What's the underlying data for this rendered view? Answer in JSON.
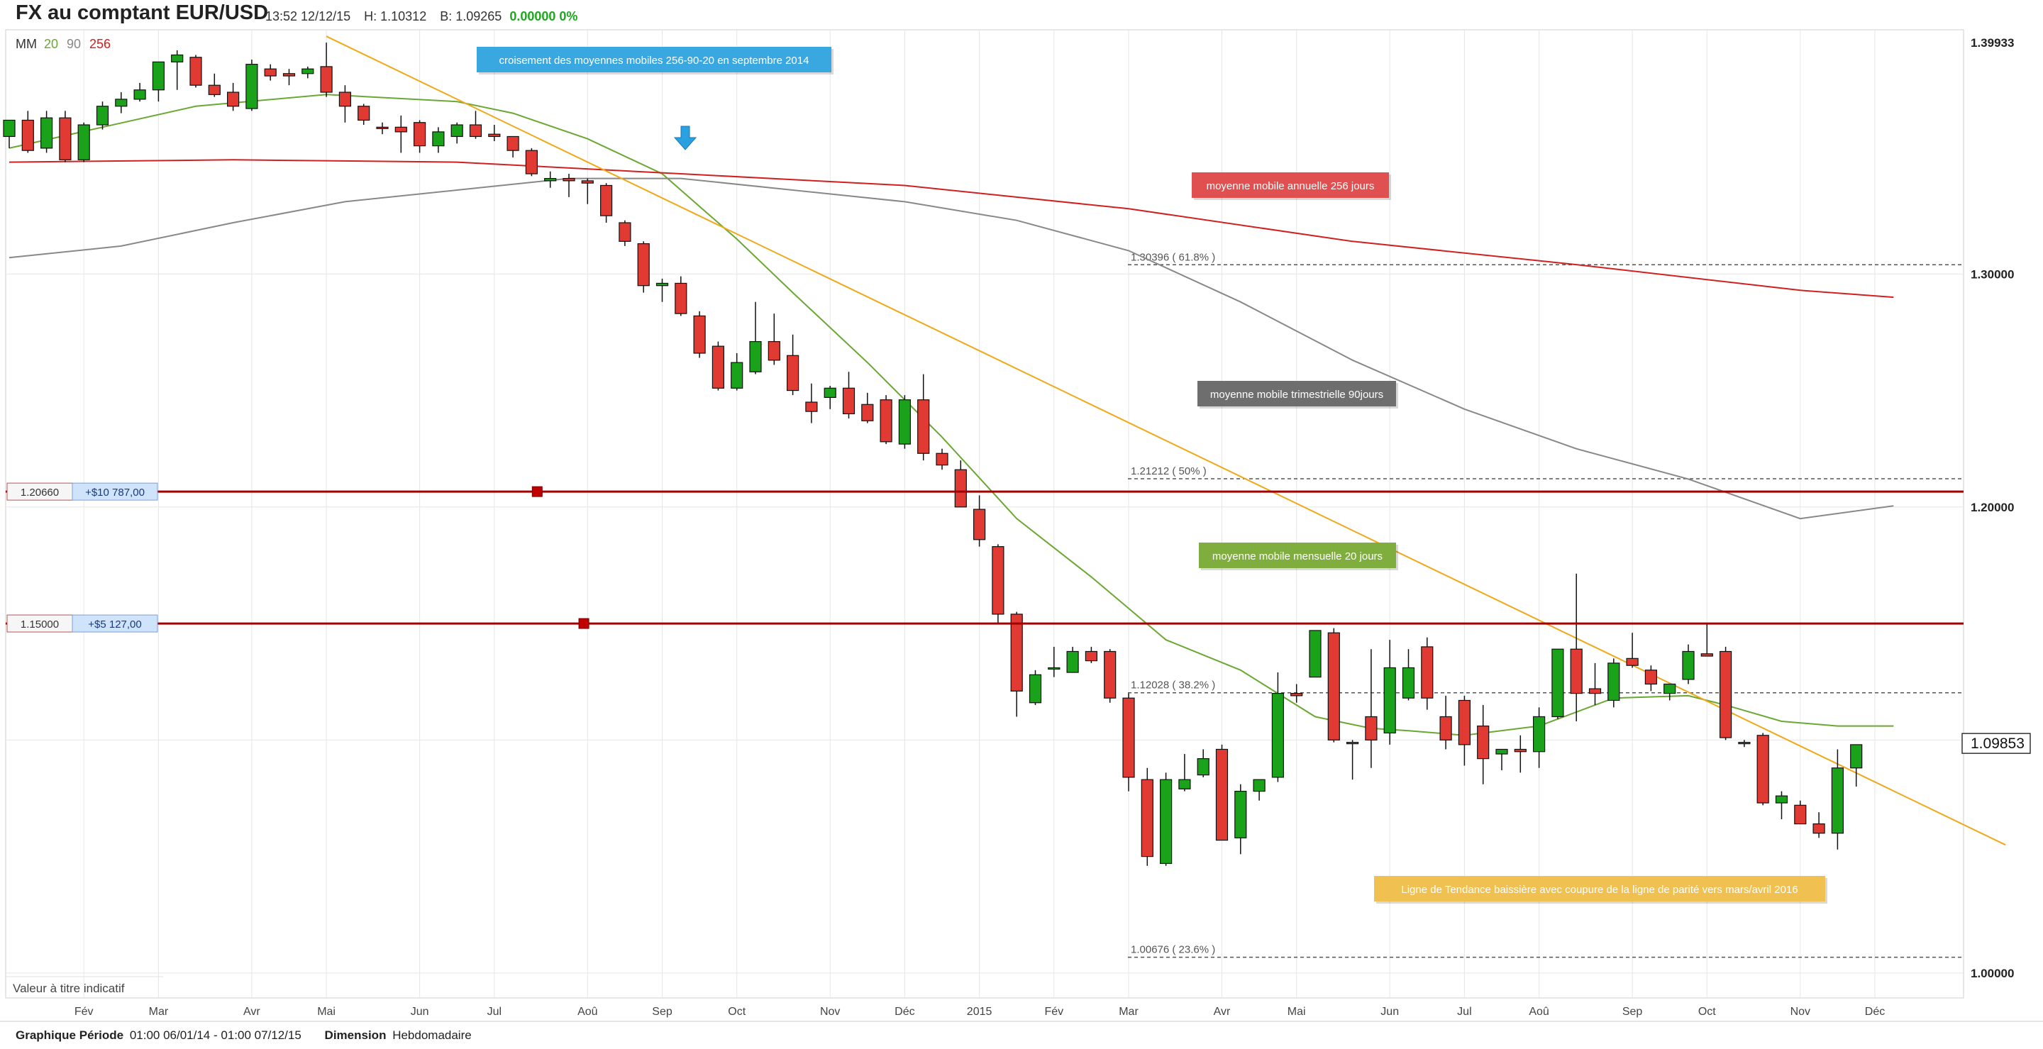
{
  "header": {
    "title": "FX au comptant EUR/USD",
    "datetime": "13:52 12/12/15",
    "high": "H: 1.10312",
    "bid": "B: 1.09265",
    "change": "0.00000 0%"
  },
  "footer": {
    "period_label": "Graphique Période",
    "period_value": "01:00 06/01/14 - 01:00 07/12/15",
    "dimension_label": "Dimension",
    "dimension_value": "Hebdomadaire"
  },
  "chart_data": {
    "type": "candlestick",
    "title": "FX au comptant EUR/USD",
    "interval": "weekly",
    "ylim": [
      0.9893,
      1.4048
    ],
    "yticks": [
      {
        "value": 1.3,
        "label": "1.30000"
      },
      {
        "value": 1.2,
        "label": "1.20000"
      },
      {
        "value": 1.0,
        "label": "1.00000"
      }
    ],
    "top_price_label": "1.39933",
    "last_price": 1.09853,
    "last_price_label": "1.09853",
    "disclaimer": "Valeur à titre indicatif",
    "x_ticks": [
      "Fév",
      "Mar",
      "Avr",
      "Mai",
      "Jun",
      "Jul",
      "Aoû",
      "Sep",
      "Oct",
      "Nov",
      "Déc",
      "2015",
      "Fév",
      "Mar",
      "Avr",
      "Mai",
      "Jun",
      "Jul",
      "Aoû",
      "Sep",
      "Oct",
      "Nov",
      "Déc"
    ],
    "ma_legend": {
      "label": "MM",
      "periods": [
        {
          "period": "20",
          "color": "#6aa832"
        },
        {
          "period": "90",
          "color": "#888888"
        },
        {
          "period": "256",
          "color": "#d02020"
        }
      ]
    },
    "candles": [
      {
        "o": 1.359,
        "h": 1.365,
        "l": 1.354,
        "c": 1.366
      },
      {
        "o": 1.366,
        "h": 1.37,
        "l": 1.352,
        "c": 1.353
      },
      {
        "o": 1.354,
        "h": 1.37,
        "l": 1.352,
        "c": 1.367
      },
      {
        "o": 1.367,
        "h": 1.37,
        "l": 1.348,
        "c": 1.349
      },
      {
        "o": 1.349,
        "h": 1.365,
        "l": 1.348,
        "c": 1.364
      },
      {
        "o": 1.364,
        "h": 1.374,
        "l": 1.362,
        "c": 1.372
      },
      {
        "o": 1.372,
        "h": 1.378,
        "l": 1.369,
        "c": 1.375
      },
      {
        "o": 1.375,
        "h": 1.382,
        "l": 1.374,
        "c": 1.379
      },
      {
        "o": 1.379,
        "h": 1.389,
        "l": 1.374,
        "c": 1.391
      },
      {
        "o": 1.391,
        "h": 1.396,
        "l": 1.379,
        "c": 1.394
      },
      {
        "o": 1.393,
        "h": 1.394,
        "l": 1.38,
        "c": 1.381
      },
      {
        "o": 1.381,
        "h": 1.386,
        "l": 1.376,
        "c": 1.377
      },
      {
        "o": 1.378,
        "h": 1.382,
        "l": 1.37,
        "c": 1.372
      },
      {
        "o": 1.371,
        "h": 1.392,
        "l": 1.37,
        "c": 1.39
      },
      {
        "o": 1.388,
        "h": 1.39,
        "l": 1.383,
        "c": 1.385
      },
      {
        "o": 1.386,
        "h": 1.388,
        "l": 1.381,
        "c": 1.385
      },
      {
        "o": 1.386,
        "h": 1.389,
        "l": 1.384,
        "c": 1.388
      },
      {
        "o": 1.389,
        "h": 1.3993,
        "l": 1.376,
        "c": 1.378
      },
      {
        "o": 1.378,
        "h": 1.381,
        "l": 1.365,
        "c": 1.372
      },
      {
        "o": 1.372,
        "h": 1.373,
        "l": 1.364,
        "c": 1.366
      },
      {
        "o": 1.363,
        "h": 1.365,
        "l": 1.36,
        "c": 1.3625
      },
      {
        "o": 1.363,
        "h": 1.368,
        "l": 1.352,
        "c": 1.361
      },
      {
        "o": 1.365,
        "h": 1.366,
        "l": 1.352,
        "c": 1.355
      },
      {
        "o": 1.355,
        "h": 1.363,
        "l": 1.352,
        "c": 1.361
      },
      {
        "o": 1.359,
        "h": 1.365,
        "l": 1.356,
        "c": 1.364
      },
      {
        "o": 1.364,
        "h": 1.37,
        "l": 1.358,
        "c": 1.359
      },
      {
        "o": 1.36,
        "h": 1.364,
        "l": 1.357,
        "c": 1.359
      },
      {
        "o": 1.359,
        "h": 1.359,
        "l": 1.35,
        "c": 1.353
      },
      {
        "o": 1.353,
        "h": 1.354,
        "l": 1.342,
        "c": 1.343
      },
      {
        "o": 1.34,
        "h": 1.344,
        "l": 1.337,
        "c": 1.341
      },
      {
        "o": 1.341,
        "h": 1.343,
        "l": 1.333,
        "c": 1.34
      },
      {
        "o": 1.34,
        "h": 1.341,
        "l": 1.33,
        "c": 1.339
      },
      {
        "o": 1.338,
        "h": 1.339,
        "l": 1.322,
        "c": 1.325
      },
      {
        "o": 1.322,
        "h": 1.323,
        "l": 1.312,
        "c": 1.314
      },
      {
        "o": 1.313,
        "h": 1.314,
        "l": 1.292,
        "c": 1.295
      },
      {
        "o": 1.295,
        "h": 1.298,
        "l": 1.288,
        "c": 1.296
      },
      {
        "o": 1.296,
        "h": 1.299,
        "l": 1.282,
        "c": 1.283
      },
      {
        "o": 1.282,
        "h": 1.284,
        "l": 1.264,
        "c": 1.266
      },
      {
        "o": 1.269,
        "h": 1.271,
        "l": 1.25,
        "c": 1.251
      },
      {
        "o": 1.251,
        "h": 1.266,
        "l": 1.25,
        "c": 1.262
      },
      {
        "o": 1.258,
        "h": 1.288,
        "l": 1.257,
        "c": 1.271
      },
      {
        "o": 1.271,
        "h": 1.283,
        "l": 1.261,
        "c": 1.263
      },
      {
        "o": 1.265,
        "h": 1.274,
        "l": 1.248,
        "c": 1.25
      },
      {
        "o": 1.245,
        "h": 1.253,
        "l": 1.236,
        "c": 1.241
      },
      {
        "o": 1.247,
        "h": 1.252,
        "l": 1.242,
        "c": 1.251
      },
      {
        "o": 1.251,
        "h": 1.258,
        "l": 1.238,
        "c": 1.24
      },
      {
        "o": 1.244,
        "h": 1.249,
        "l": 1.236,
        "c": 1.237
      },
      {
        "o": 1.246,
        "h": 1.248,
        "l": 1.227,
        "c": 1.228
      },
      {
        "o": 1.227,
        "h": 1.248,
        "l": 1.225,
        "c": 1.246
      },
      {
        "o": 1.246,
        "h": 1.257,
        "l": 1.22,
        "c": 1.223
      },
      {
        "o": 1.223,
        "h": 1.225,
        "l": 1.216,
        "c": 1.218
      },
      {
        "o": 1.216,
        "h": 1.22,
        "l": 1.2,
        "c": 1.2
      },
      {
        "o": 1.199,
        "h": 1.205,
        "l": 1.183,
        "c": 1.186
      },
      {
        "o": 1.183,
        "h": 1.184,
        "l": 1.15,
        "c": 1.154
      },
      {
        "o": 1.154,
        "h": 1.155,
        "l": 1.11,
        "c": 1.121
      },
      {
        "o": 1.116,
        "h": 1.13,
        "l": 1.115,
        "c": 1.128
      },
      {
        "o": 1.131,
        "h": 1.14,
        "l": 1.127,
        "c": 1.131
      },
      {
        "o": 1.129,
        "h": 1.14,
        "l": 1.129,
        "c": 1.138
      },
      {
        "o": 1.138,
        "h": 1.14,
        "l": 1.133,
        "c": 1.134
      },
      {
        "o": 1.138,
        "h": 1.139,
        "l": 1.116,
        "c": 1.118
      },
      {
        "o": 1.118,
        "h": 1.12,
        "l": 1.078,
        "c": 1.084
      },
      {
        "o": 1.083,
        "h": 1.088,
        "l": 1.046,
        "c": 1.05
      },
      {
        "o": 1.047,
        "h": 1.086,
        "l": 1.046,
        "c": 1.083
      },
      {
        "o": 1.079,
        "h": 1.094,
        "l": 1.078,
        "c": 1.083
      },
      {
        "o": 1.085,
        "h": 1.096,
        "l": 1.084,
        "c": 1.092
      },
      {
        "o": 1.096,
        "h": 1.098,
        "l": 1.057,
        "c": 1.057
      },
      {
        "o": 1.058,
        "h": 1.081,
        "l": 1.051,
        "c": 1.078
      },
      {
        "o": 1.078,
        "h": 1.083,
        "l": 1.074,
        "c": 1.083
      },
      {
        "o": 1.084,
        "h": 1.129,
        "l": 1.082,
        "c": 1.12
      },
      {
        "o": 1.12,
        "h": 1.124,
        "l": 1.116,
        "c": 1.119
      },
      {
        "o": 1.127,
        "h": 1.147,
        "l": 1.127,
        "c": 1.147
      },
      {
        "o": 1.146,
        "h": 1.148,
        "l": 1.099,
        "c": 1.1
      },
      {
        "o": 1.099,
        "h": 1.1,
        "l": 1.083,
        "c": 1.099
      },
      {
        "o": 1.11,
        "h": 1.139,
        "l": 1.088,
        "c": 1.1
      },
      {
        "o": 1.103,
        "h": 1.143,
        "l": 1.098,
        "c": 1.131
      },
      {
        "o": 1.118,
        "h": 1.139,
        "l": 1.117,
        "c": 1.131
      },
      {
        "o": 1.14,
        "h": 1.144,
        "l": 1.113,
        "c": 1.118
      },
      {
        "o": 1.11,
        "h": 1.119,
        "l": 1.096,
        "c": 1.1
      },
      {
        "o": 1.117,
        "h": 1.119,
        "l": 1.089,
        "c": 1.098
      },
      {
        "o": 1.106,
        "h": 1.115,
        "l": 1.081,
        "c": 1.092
      },
      {
        "o": 1.094,
        "h": 1.096,
        "l": 1.087,
        "c": 1.096
      },
      {
        "o": 1.096,
        "h": 1.102,
        "l": 1.086,
        "c": 1.095
      },
      {
        "o": 1.095,
        "h": 1.114,
        "l": 1.088,
        "c": 1.11
      },
      {
        "o": 1.11,
        "h": 1.139,
        "l": 1.109,
        "c": 1.139
      },
      {
        "o": 1.139,
        "h": 1.1714,
        "l": 1.108,
        "c": 1.12
      },
      {
        "o": 1.122,
        "h": 1.133,
        "l": 1.115,
        "c": 1.12
      },
      {
        "o": 1.117,
        "h": 1.135,
        "l": 1.114,
        "c": 1.133
      },
      {
        "o": 1.135,
        "h": 1.146,
        "l": 1.131,
        "c": 1.132
      },
      {
        "o": 1.13,
        "h": 1.132,
        "l": 1.121,
        "c": 1.124
      },
      {
        "o": 1.12,
        "h": 1.124,
        "l": 1.117,
        "c": 1.124
      },
      {
        "o": 1.126,
        "h": 1.141,
        "l": 1.124,
        "c": 1.138
      },
      {
        "o": 1.137,
        "h": 1.15,
        "l": 1.136,
        "c": 1.136
      },
      {
        "o": 1.138,
        "h": 1.14,
        "l": 1.1,
        "c": 1.101
      },
      {
        "o": 1.099,
        "h": 1.1,
        "l": 1.097,
        "c": 1.099
      },
      {
        "o": 1.102,
        "h": 1.103,
        "l": 1.072,
        "c": 1.073
      },
      {
        "o": 1.073,
        "h": 1.078,
        "l": 1.066,
        "c": 1.076
      },
      {
        "o": 1.072,
        "h": 1.074,
        "l": 1.065,
        "c": 1.064
      },
      {
        "o": 1.064,
        "h": 1.069,
        "l": 1.058,
        "c": 1.06
      },
      {
        "o": 1.06,
        "h": 1.096,
        "l": 1.053,
        "c": 1.088
      },
      {
        "o": 1.088,
        "h": 1.098,
        "l": 1.08,
        "c": 1.098
      }
    ],
    "moving_averages": [
      {
        "name": "moyenne mobile mensuelle 20 jours",
        "color": "#6aa832",
        "points": [
          [
            0,
            1.354
          ],
          [
            10,
            1.372
          ],
          [
            17,
            1.377
          ],
          [
            24,
            1.374
          ],
          [
            27,
            1.369
          ],
          [
            31,
            1.358
          ],
          [
            35,
            1.343
          ],
          [
            39,
            1.315
          ],
          [
            42,
            1.292
          ],
          [
            46,
            1.262
          ],
          [
            50,
            1.23
          ],
          [
            54,
            1.195
          ],
          [
            58,
            1.17
          ],
          [
            62,
            1.143
          ],
          [
            66,
            1.13
          ],
          [
            70,
            1.11
          ],
          [
            73,
            1.105
          ],
          [
            75,
            1.104
          ],
          [
            78,
            1.102
          ],
          [
            82,
            1.106
          ],
          [
            86,
            1.118
          ],
          [
            90,
            1.119
          ],
          [
            92,
            1.115
          ],
          [
            95,
            1.108
          ],
          [
            98,
            1.106
          ],
          [
            101,
            1.106
          ]
        ]
      },
      {
        "name": "moyenne mobile trimestrielle 90jours",
        "color": "#888888",
        "points": [
          [
            0,
            1.307
          ],
          [
            6,
            1.312
          ],
          [
            12,
            1.322
          ],
          [
            18,
            1.331
          ],
          [
            24,
            1.336
          ],
          [
            30,
            1.341
          ],
          [
            36,
            1.341
          ],
          [
            42,
            1.336
          ],
          [
            48,
            1.331
          ],
          [
            54,
            1.323
          ],
          [
            60,
            1.31
          ],
          [
            66,
            1.288
          ],
          [
            72,
            1.263
          ],
          [
            78,
            1.242
          ],
          [
            84,
            1.225
          ],
          [
            90,
            1.212
          ],
          [
            96,
            1.195
          ],
          [
            101,
            1.2005
          ]
        ]
      },
      {
        "name": "moyenne mobile annuelle 256 jours",
        "color": "#d02020",
        "points": [
          [
            0,
            1.348
          ],
          [
            12,
            1.349
          ],
          [
            24,
            1.348
          ],
          [
            36,
            1.343
          ],
          [
            48,
            1.338
          ],
          [
            60,
            1.328
          ],
          [
            72,
            1.314
          ],
          [
            84,
            1.304
          ],
          [
            96,
            1.293
          ],
          [
            101,
            1.29
          ]
        ]
      }
    ],
    "trendline": {
      "name": "Ligne de Tendance baissière avec coupure de la ligne de parité vers mars/avril 2016",
      "color": "#f0a818",
      "points": [
        [
          17,
          1.402
        ],
        [
          107,
          1.055
        ]
      ]
    },
    "horizontal_lines": [
      {
        "value": 1.2066,
        "label": "1.20660",
        "pnl": "+$10 787,00",
        "color": "#a00000"
      },
      {
        "value": 1.15,
        "label": "1.15000",
        "pnl": "+$5 127,00",
        "color": "#a00000"
      }
    ],
    "fibonacci_levels": [
      {
        "value": 1.30396,
        "label": "1.30396 ( 61.8% )"
      },
      {
        "value": 1.21212,
        "label": "1.21212 ( 50% )"
      },
      {
        "value": 1.12028,
        "label": "1.12028 ( 38.2% )"
      },
      {
        "value": 1.00676,
        "label": "1.00676 ( 23.6% )"
      }
    ],
    "annotations": [
      {
        "text": "croisement des moyennes mobiles 256-90-20 en septembre 2014",
        "color": "#3aa8e0"
      },
      {
        "text": "moyenne mobile annuelle 256 jours",
        "color": "#e05050"
      },
      {
        "text": "moyenne mobile trimestrielle 90jours",
        "color": "#6e6e6e"
      },
      {
        "text": "moyenne mobile mensuelle 20 jours",
        "color": "#7fae3e"
      },
      {
        "text": "Ligne de Tendance baissière avec coupure de la ligne de parité vers mars/avril 2016",
        "color": "#f0c050"
      }
    ],
    "colors": {
      "up": "#1aa31a",
      "down": "#e03a32",
      "grid": "#e6e6e6",
      "text": "#333333",
      "arrow": "#2aa0e0"
    }
  }
}
